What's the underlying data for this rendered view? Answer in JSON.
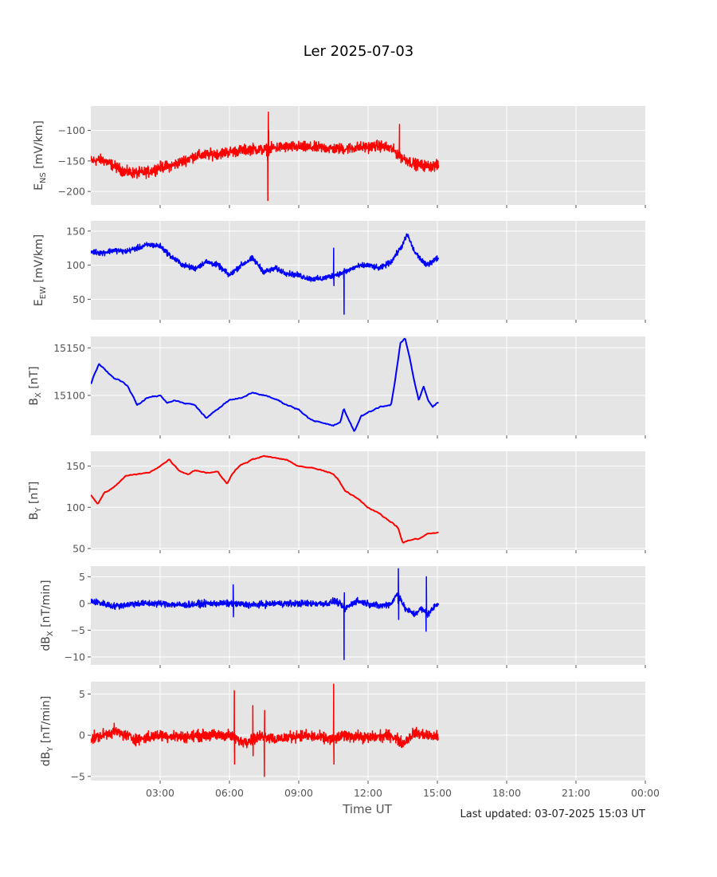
{
  "chart_data": {
    "title": "Ler 2025-07-03",
    "xlabel": "Time UT",
    "footer": "Last updated: 03-07-2025 15:03 UT",
    "x_ticks": [
      "03:00",
      "06:00",
      "09:00",
      "12:00",
      "15:00",
      "18:00",
      "21:00",
      "00:00"
    ],
    "x_tick_hours": [
      3,
      6,
      9,
      12,
      15,
      18,
      21,
      24
    ],
    "x_range_hours": [
      0,
      24
    ],
    "data_end_hour": 15.05,
    "grid": true,
    "panels": [
      {
        "type": "line",
        "ylabel": {
          "pre": "E",
          "sub": "NS",
          "post": " [mV/km]"
        },
        "color": "#ff0000",
        "ylim": [
          -222,
          -60
        ],
        "yticks": [
          -100,
          -150,
          -200
        ],
        "ytick_labels": [
          "−100",
          "−150",
          "−200"
        ],
        "style": "noisy",
        "noise": 13,
        "x": [
          0,
          0.5,
          1,
          1.5,
          2,
          2.5,
          3,
          3.5,
          4,
          4.5,
          5,
          5.5,
          6,
          6.5,
          7,
          7.5,
          8,
          8.5,
          9,
          9.5,
          10,
          10.5,
          11,
          11.5,
          12,
          12.5,
          13,
          13.5,
          14,
          14.5,
          15
        ],
        "values": [
          -150,
          -148,
          -158,
          -168,
          -170,
          -168,
          -160,
          -158,
          -150,
          -142,
          -140,
          -138,
          -135,
          -133,
          -130,
          -132,
          -128,
          -127,
          -127,
          -128,
          -128,
          -130,
          -130,
          -128,
          -127,
          -125,
          -130,
          -145,
          -155,
          -158,
          -158
        ],
        "spikes": [
          {
            "x": 7.65,
            "values": [
              -150,
              -215,
              -125,
              -70,
              -100
            ]
          },
          {
            "x": 13.35,
            "values": [
              -130,
              -90,
              -135
            ]
          }
        ]
      },
      {
        "type": "line",
        "ylabel": {
          "pre": "E",
          "sub": "EW",
          "post": " [mV/km]"
        },
        "color": "#0000ff",
        "ylim": [
          20,
          165
        ],
        "yticks": [
          50,
          100,
          150
        ],
        "ytick_labels": [
          "50",
          "100",
          "150"
        ],
        "style": "noisy",
        "noise": 6,
        "x": [
          0,
          0.5,
          1,
          1.5,
          2,
          2.5,
          3,
          3.5,
          4,
          4.5,
          5,
          5.5,
          6,
          6.5,
          7,
          7.5,
          8,
          8.5,
          9,
          9.5,
          10,
          10.5,
          11,
          11.5,
          12,
          12.5,
          13,
          13.5,
          13.7,
          14,
          14.5,
          15
        ],
        "values": [
          120,
          118,
          122,
          120,
          125,
          130,
          128,
          112,
          100,
          95,
          105,
          100,
          85,
          100,
          110,
          90,
          95,
          88,
          85,
          80,
          80,
          85,
          90,
          98,
          100,
          95,
          105,
          130,
          145,
          120,
          100,
          110
        ],
        "spikes": [
          {
            "x": 10.95,
            "values": [
              80,
              28,
              95
            ]
          },
          {
            "x": 10.5,
            "values": [
              80,
              125,
              70
            ]
          }
        ]
      },
      {
        "type": "line",
        "ylabel": {
          "pre": "B",
          "sub": "X",
          "post": " [nT]"
        },
        "color": "#0000ff",
        "ylim": [
          15058,
          15162
        ],
        "yticks": [
          15150,
          15100
        ],
        "ytick_labels": [
          "15150",
          "15100"
        ],
        "style": "smooth",
        "noise": 0.8,
        "x": [
          0,
          0.2,
          0.35,
          0.5,
          1,
          1.2,
          1.6,
          2,
          2.2,
          2.5,
          3,
          3.3,
          3.6,
          4,
          4.5,
          5,
          5.3,
          5.5,
          6,
          6.5,
          7,
          7.5,
          8,
          8.5,
          9,
          9.5,
          10,
          10.5,
          10.8,
          10.95,
          11.2,
          11.4,
          11.7,
          12,
          12.5,
          13,
          13.2,
          13.4,
          13.6,
          13.8,
          14,
          14.2,
          14.4,
          14.6,
          14.8,
          15
        ],
        "values": [
          15112,
          15125,
          15133,
          15130,
          15118,
          15117,
          15110,
          15090,
          15093,
          15098,
          15100,
          15092,
          15095,
          15092,
          15090,
          15076,
          15082,
          15086,
          15095,
          15097,
          15103,
          15100,
          15096,
          15090,
          15085,
          15075,
          15071,
          15068,
          15072,
          15086,
          15072,
          15062,
          15078,
          15082,
          15088,
          15090,
          15120,
          15155,
          15160,
          15140,
          15115,
          15095,
          15110,
          15095,
          15088,
          15092
        ]
      },
      {
        "type": "line",
        "ylabel": {
          "pre": "B",
          "sub": "Y",
          "post": " [nT]"
        },
        "color": "#ff0000",
        "ylim": [
          48,
          168
        ],
        "yticks": [
          150,
          100,
          50
        ],
        "ytick_labels": [
          "150",
          "100",
          "50"
        ],
        "style": "smooth",
        "noise": 0.8,
        "x": [
          0,
          0.3,
          0.6,
          1,
          1.5,
          2,
          2.5,
          3,
          3.4,
          3.8,
          4.2,
          4.5,
          5,
          5.5,
          5.9,
          6.1,
          6.4,
          7,
          7.5,
          8,
          8.5,
          9,
          9.5,
          10,
          10.5,
          10.8,
          11,
          11.5,
          12,
          12.5,
          13,
          13.3,
          13.5,
          13.8,
          14.2,
          14.6,
          15
        ],
        "values": [
          115,
          104,
          118,
          124,
          138,
          140,
          142,
          150,
          158,
          145,
          140,
          145,
          142,
          143,
          128,
          140,
          150,
          158,
          162,
          160,
          157,
          150,
          148,
          145,
          140,
          130,
          120,
          112,
          100,
          92,
          82,
          75,
          57,
          60,
          62,
          68,
          69
        ]
      },
      {
        "type": "line",
        "ylabel": {
          "pre": "dB",
          "sub": "X",
          "post": " [nT/min]"
        },
        "color": "#0000ff",
        "ylim": [
          -11.5,
          7
        ],
        "yticks": [
          5,
          0,
          -5,
          -10
        ],
        "ytick_labels": [
          "5",
          "0",
          "−5",
          "−10"
        ],
        "style": "noisy",
        "noise": 0.9,
        "x": [
          0,
          1,
          2,
          3,
          4,
          5,
          6,
          7,
          8,
          9,
          10,
          10.3,
          10.6,
          11,
          11.5,
          12,
          12.5,
          13,
          13.3,
          13.6,
          14,
          14.3,
          14.6,
          15
        ],
        "values": [
          0.5,
          -0.5,
          0,
          0,
          -0.3,
          0,
          0,
          -0.3,
          0,
          0,
          0,
          0,
          0.5,
          -1,
          0.5,
          0,
          -0.5,
          0,
          2,
          -1,
          -2,
          -1,
          -2,
          0
        ],
        "spikes": [
          {
            "x": 10.95,
            "values": [
              0,
              -10.5,
              2
            ]
          },
          {
            "x": 13.3,
            "values": [
              0,
              6.5,
              -3
            ]
          },
          {
            "x": 6.15,
            "values": [
              0,
              3.5,
              -2.5
            ]
          },
          {
            "x": 14.5,
            "values": [
              -1,
              -5.2,
              5,
              -2
            ]
          }
        ]
      },
      {
        "type": "line",
        "ylabel": {
          "pre": "dB",
          "sub": "Y",
          "post": " [nT/min]"
        },
        "color": "#ff0000",
        "ylim": [
          -5.5,
          6.5
        ],
        "yticks": [
          5,
          0,
          -5
        ],
        "ytick_labels": [
          "5",
          "0",
          "−5"
        ],
        "style": "noisy",
        "noise": 1.0,
        "x": [
          0,
          1,
          2,
          3,
          4,
          5,
          6,
          6.5,
          7,
          7.5,
          8,
          9,
          10,
          10.5,
          11,
          12,
          13,
          13.5,
          14,
          14.5,
          15
        ],
        "values": [
          -0.5,
          0.5,
          -0.5,
          0,
          -0.2,
          0,
          0,
          -0.8,
          -0.5,
          0,
          -0.5,
          0,
          -0.3,
          -0.5,
          0,
          -0.3,
          0,
          -1,
          0.3,
          0,
          -0.2
        ],
        "spikes": [
          {
            "x": 6.2,
            "values": [
              0,
              5.4,
              -3.5
            ]
          },
          {
            "x": 7.5,
            "values": [
              0,
              -5.0,
              3
            ]
          },
          {
            "x": 10.5,
            "values": [
              0,
              6.2,
              -3.5
            ]
          },
          {
            "x": 7.0,
            "values": [
              0,
              3.6,
              -2.5
            ]
          }
        ]
      }
    ]
  }
}
